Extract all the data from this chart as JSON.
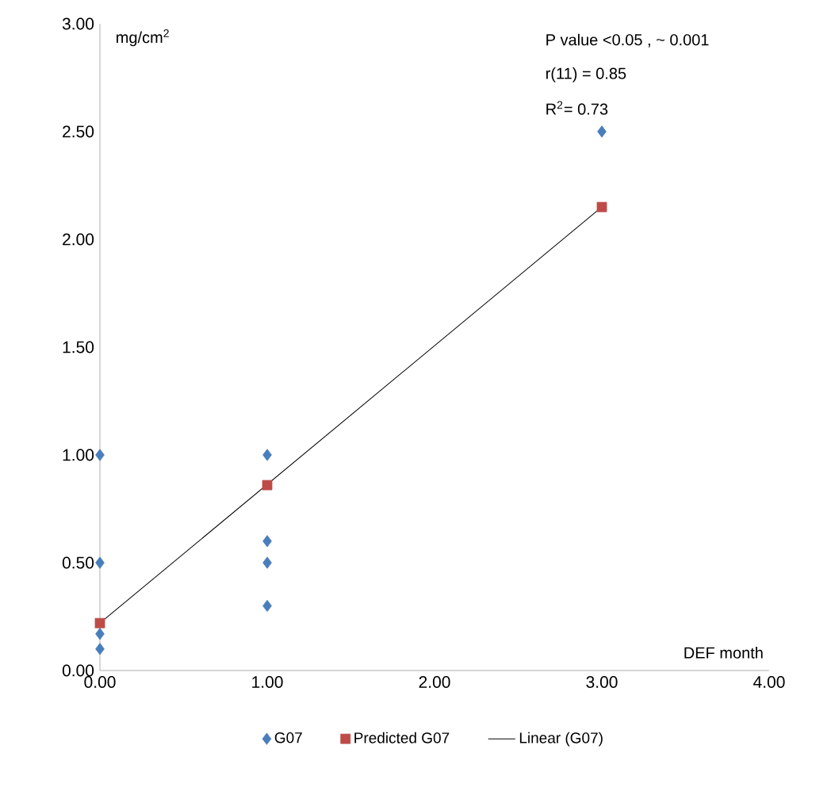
{
  "chart_data": {
    "type": "scatter",
    "xlabel": "DEF  month",
    "ylabel": "mg/cm$^{2}$",
    "annotations": [
      "P value  <0.05 ,  ~ 0.001",
      "r(11) = 0.85",
      "R$^{2}$= 0.73"
    ],
    "series": [
      {
        "name": "G07",
        "color": "#4a7ebb",
        "marker": "diamond",
        "x": [
          0,
          0,
          0,
          0,
          1,
          1,
          1,
          1,
          3
        ],
        "values": [
          1.0,
          0.5,
          0.17,
          0.1,
          1.0,
          0.6,
          0.5,
          0.3,
          2.5
        ]
      },
      {
        "name": "Predicted G07",
        "color": "#be4b48",
        "marker": "square",
        "x": [
          0,
          1,
          3
        ],
        "values": [
          0.22,
          0.86,
          2.15
        ]
      },
      {
        "name": "Linear (G07)",
        "type": "line",
        "color": "#000000",
        "marker": "none",
        "x": [
          0,
          3
        ],
        "values": [
          0.22,
          2.15
        ]
      }
    ],
    "xlim": [
      0,
      4
    ],
    "ylim": [
      0,
      3
    ],
    "xticks": [
      {
        "value": 0,
        "label": "0.00"
      },
      {
        "value": 1,
        "label": "1.00"
      },
      {
        "value": 2,
        "label": "2.00"
      },
      {
        "value": 3,
        "label": "3.00"
      },
      {
        "value": 4,
        "label": "4.00"
      }
    ],
    "yticks": [
      {
        "value": 0,
        "label": "0.00"
      },
      {
        "value": 0.5,
        "label": "0.50"
      },
      {
        "value": 1,
        "label": "1.00"
      },
      {
        "value": 1.5,
        "label": "1.50"
      },
      {
        "value": 2,
        "label": "2.00"
      },
      {
        "value": 2.5,
        "label": "2.50"
      },
      {
        "value": 3,
        "label": "3.00"
      }
    ],
    "legend": "bottom",
    "grid": false
  }
}
